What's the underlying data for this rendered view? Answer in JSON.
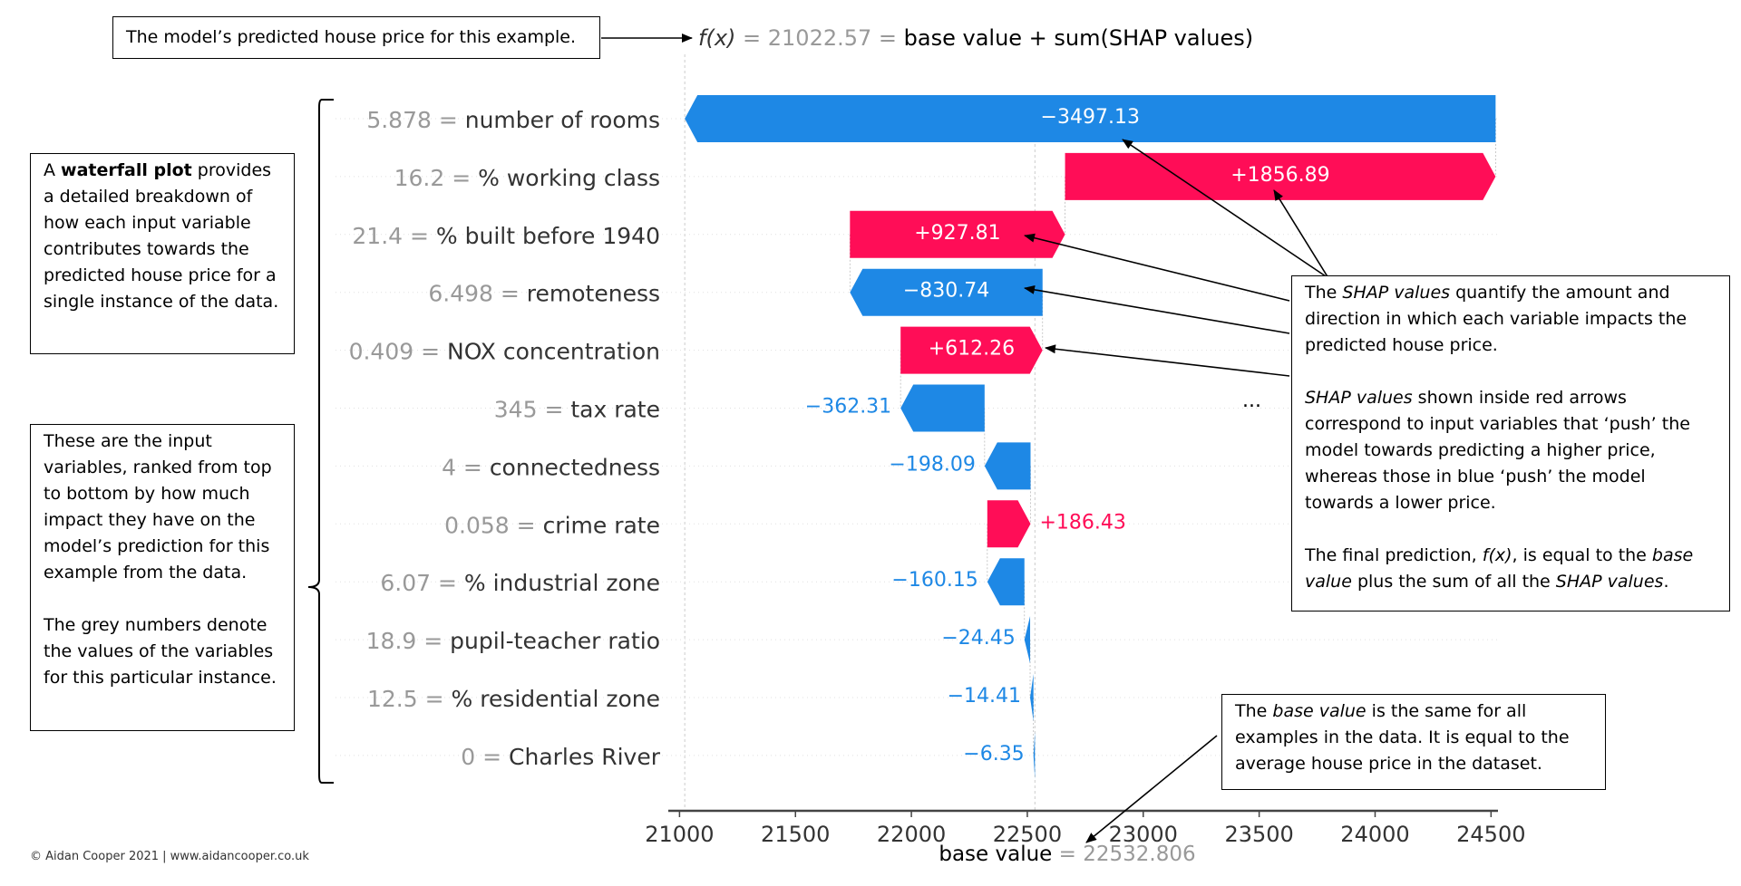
{
  "annotations": {
    "prediction_note": "The model’s predicted house price for this example.",
    "waterfall": {
      "pre": "A ",
      "bold": "waterfall plot",
      "post": " provides a detailed breakdown of how each input variable contributes towards the predicted house price for a single instance of the data."
    },
    "inputs": {
      "p1": "These are the input variables, ranked from top to bottom by how much impact they have on the model’s prediction for this example from the data.",
      "p2": "The grey numbers denote the values of the variables for this particular instance."
    },
    "shap": {
      "p1_a": "The ",
      "p1_em": "SHAP values",
      "p1_b": " quantify the amount and direction in which each variable impacts the predicted house price.",
      "p2_em": "SHAP values",
      "p2_b": " shown inside red arrows correspond to input variables that ‘push’ the model towards predicting a higher price, whereas those in blue ‘push’ the model towards a lower price.",
      "p3_a": "The final prediction, ",
      "p3_em1": "f(x)",
      "p3_b": ", is equal to the ",
      "p3_em2": "base value",
      "p3_c": " plus the sum of all the ",
      "p3_em3": "SHAP values",
      "p3_d": "."
    },
    "base": {
      "a": "The ",
      "em": "base value",
      "b": " is the same for all examples in the data. It is equal to the average house price in the dataset."
    },
    "ellipsis": "...",
    "copyright": "© Aidan Cooper 2021 | www.aidancooper.co.uk"
  },
  "chart_data": {
    "type": "waterfall",
    "fx_label": "f(x)",
    "fx_eq": " = ",
    "fx_value": "21022.57",
    "fx_eq2": " = ",
    "fx_suffix": "base value + sum(SHAP values)",
    "fx": 21022.57,
    "base_label": "base value",
    "base_eq": " = ",
    "base_value_text": "22532.806",
    "base_value": 22532.806,
    "xlim": [
      20975,
      24530
    ],
    "xticks": [
      21000,
      21500,
      22000,
      22500,
      23000,
      23500,
      24000,
      24500
    ],
    "features": [
      {
        "value_text": "5.878",
        "eq": " = ",
        "name": "number of rooms",
        "shap": -3497.13,
        "label": "−3497.13"
      },
      {
        "value_text": "16.2",
        "eq": " = ",
        "name": "% working class",
        "shap": 1856.89,
        "label": "+1856.89"
      },
      {
        "value_text": "21.4",
        "eq": " = ",
        "name": "% built before 1940",
        "shap": 927.81,
        "label": "+927.81"
      },
      {
        "value_text": "6.498",
        "eq": " = ",
        "name": "remoteness",
        "shap": -830.74,
        "label": "−830.74"
      },
      {
        "value_text": "0.409",
        "eq": " = ",
        "name": "NOX concentration",
        "shap": 612.26,
        "label": "+612.26"
      },
      {
        "value_text": "345",
        "eq": " = ",
        "name": "tax rate",
        "shap": -362.31,
        "label": "−362.31"
      },
      {
        "value_text": "4",
        "eq": " = ",
        "name": "connectedness",
        "shap": -198.09,
        "label": "−198.09"
      },
      {
        "value_text": "0.058",
        "eq": " = ",
        "name": "crime rate",
        "shap": 186.43,
        "label": "+186.43"
      },
      {
        "value_text": "6.07",
        "eq": " = ",
        "name": "% industrial zone",
        "shap": -160.15,
        "label": "−160.15"
      },
      {
        "value_text": "18.9",
        "eq": " = ",
        "name": "pupil-teacher ratio",
        "shap": -24.45,
        "label": "−24.45"
      },
      {
        "value_text": "12.5",
        "eq": " = ",
        "name": "% residential zone",
        "shap": -14.41,
        "label": "−14.41"
      },
      {
        "value_text": "0",
        "eq": " = ",
        "name": "Charles River",
        "shap": -6.35,
        "label": "−6.35"
      }
    ],
    "colors": {
      "positive": "#ff0d57",
      "negative": "#1e88e5",
      "grey": "#999999",
      "text": "#333333",
      "axis": "#444444"
    }
  }
}
